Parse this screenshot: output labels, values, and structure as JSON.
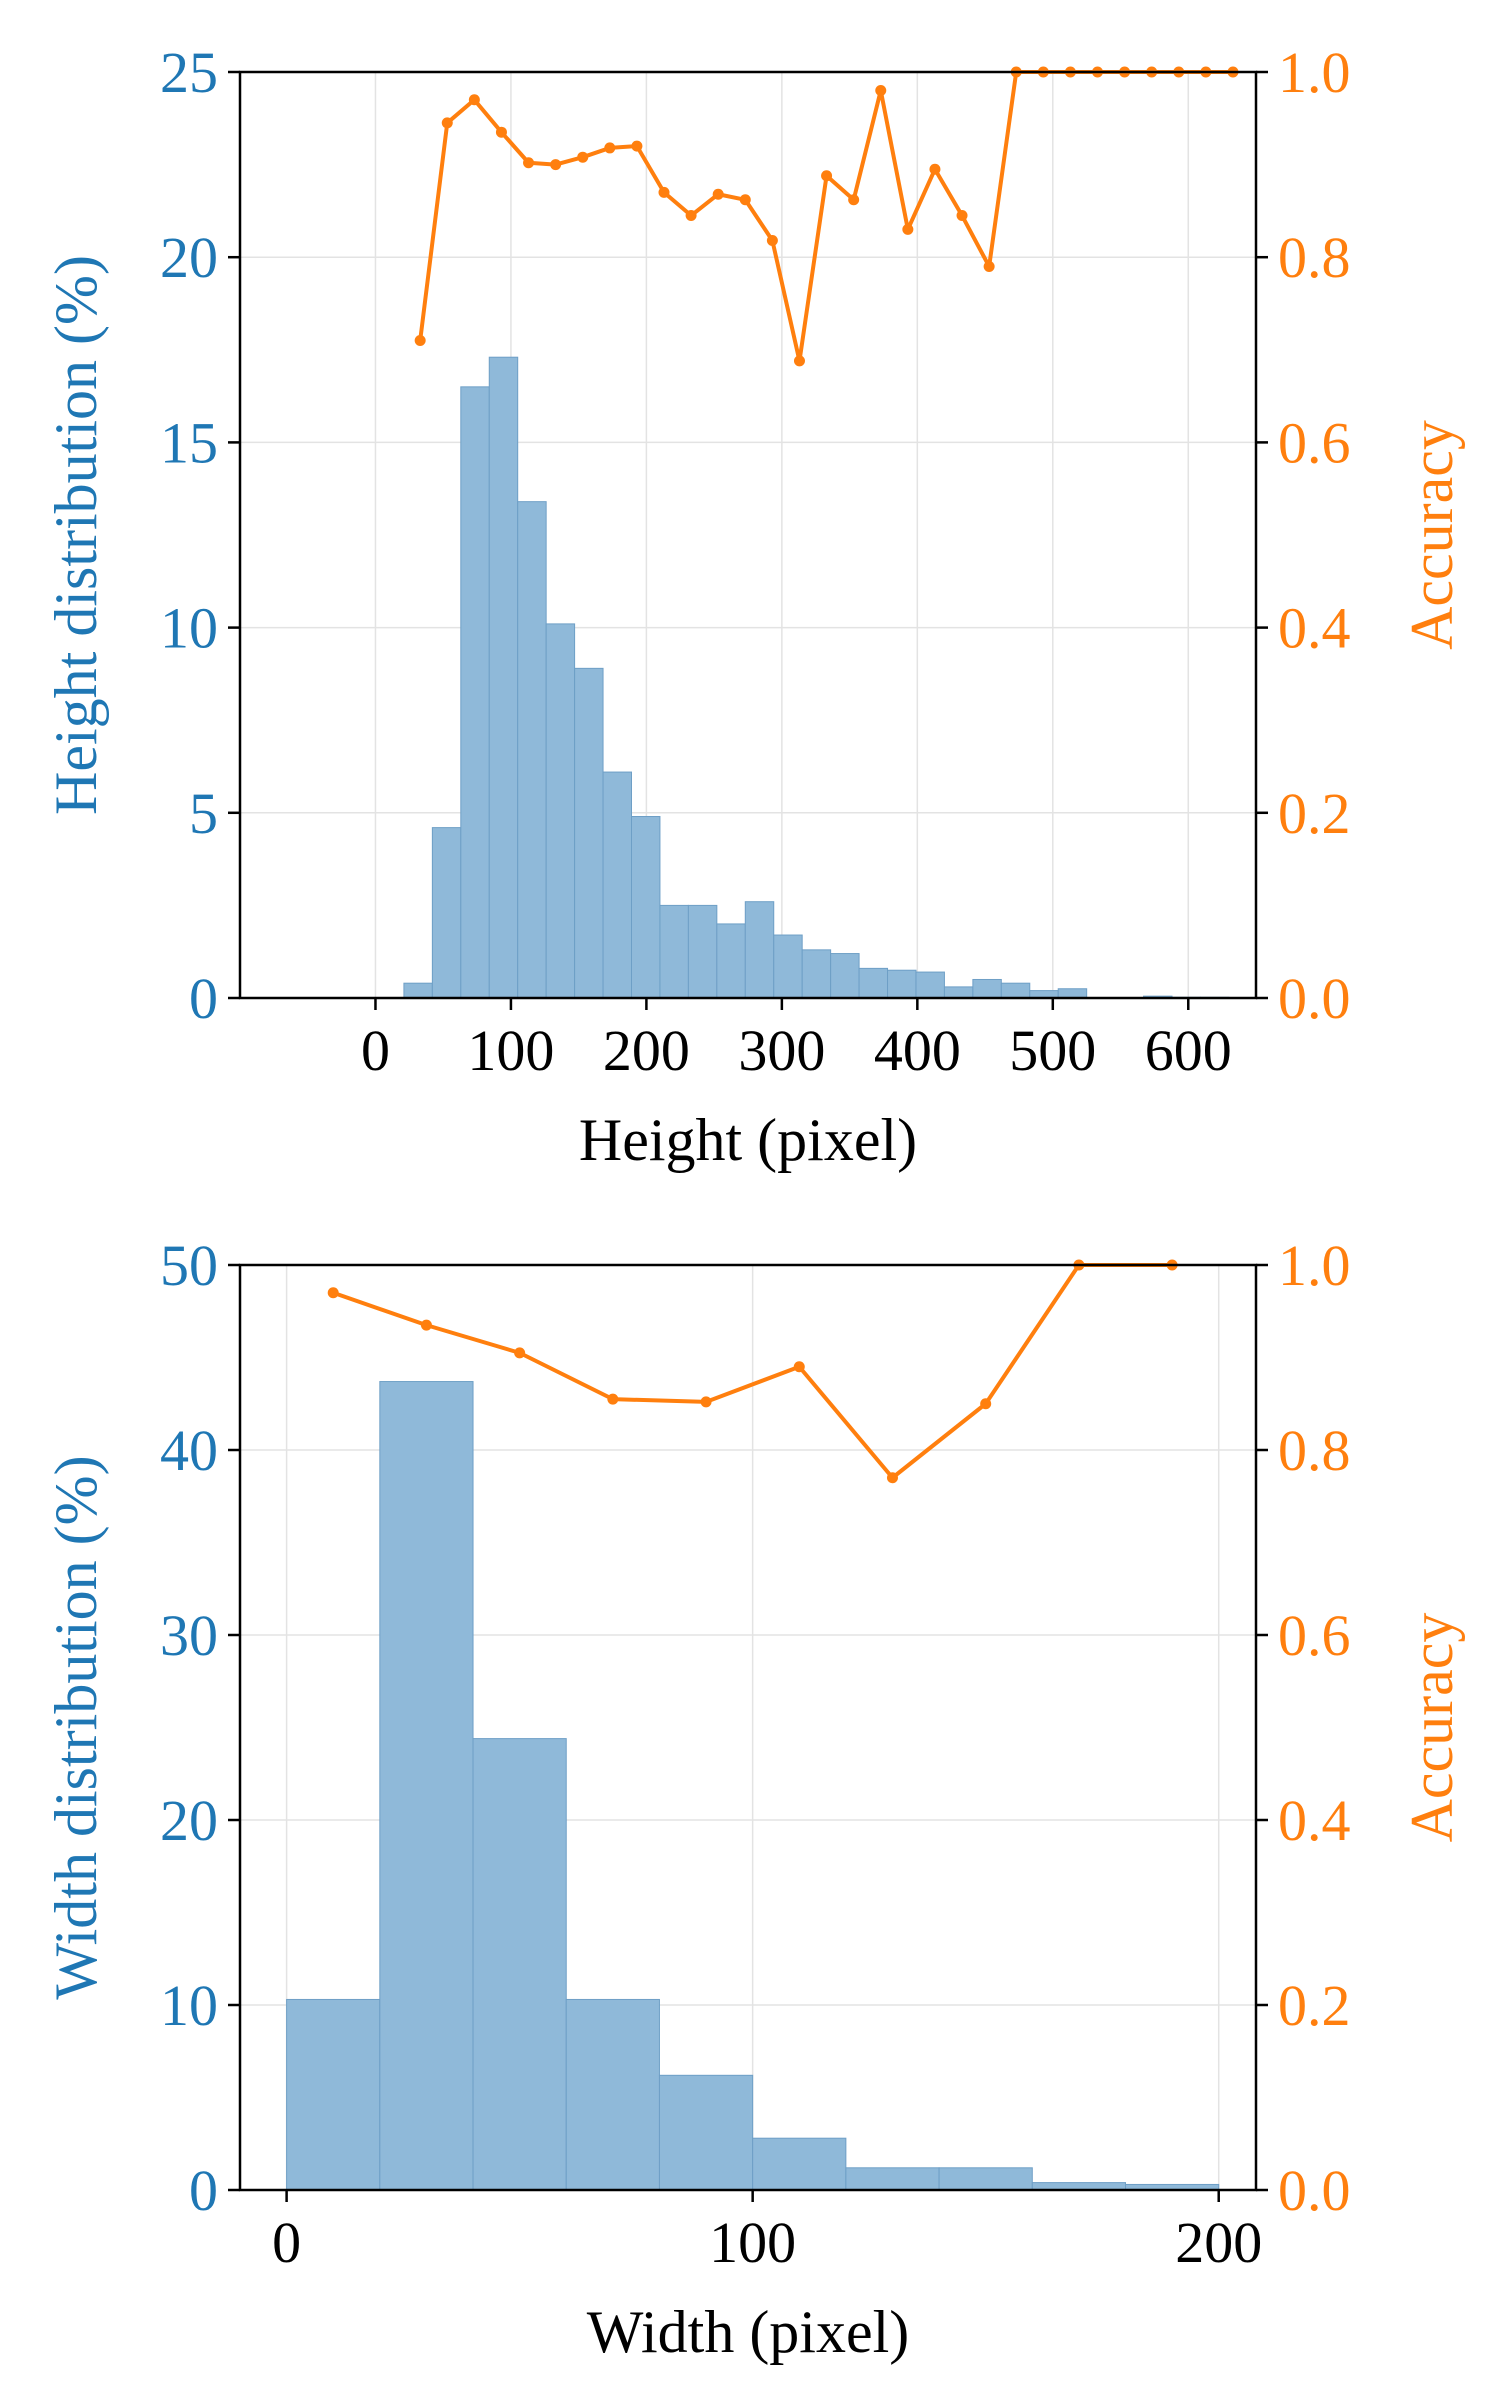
{
  "colors": {
    "hist": "#8fb9d9",
    "hist_edge": "#6e9fc6",
    "left_axis": "#1f77b4",
    "right_axis": "#ff7f0e",
    "line": "#ff7f0e",
    "grid": "#e3e3e3",
    "axis": "#000000"
  },
  "chart_data": [
    {
      "type": "bar",
      "title": "",
      "xlabel": "Height (pixel)",
      "ylabel": "Height distribution (%)",
      "y2label": "Accuracy",
      "xlim": [
        -100,
        650
      ],
      "ylim": [
        0,
        25
      ],
      "y2lim": [
        0,
        1
      ],
      "xticks": [
        0,
        100,
        200,
        300,
        400,
        500,
        600
      ],
      "yticks": [
        0,
        5,
        10,
        15,
        20,
        25
      ],
      "y2ticks": [
        "0.0",
        "0.2",
        "0.4",
        "0.6",
        "0.8",
        "1.0"
      ],
      "bin_edges": [
        -10,
        21,
        42,
        63,
        84,
        105,
        126,
        147,
        168,
        189,
        210,
        231,
        252,
        273,
        294,
        315,
        336,
        357,
        378,
        399,
        420,
        441,
        462,
        483,
        504,
        525,
        546,
        567,
        588,
        609,
        630
      ],
      "values": [
        0,
        0.4,
        4.6,
        16.5,
        17.3,
        13.4,
        10.1,
        8.9,
        6.1,
        4.9,
        2.5,
        2.5,
        2.0,
        2.6,
        1.7,
        1.3,
        1.2,
        0.8,
        0.75,
        0.7,
        0.3,
        0.5,
        0.4,
        0.2,
        0.25,
        0,
        0,
        0.05,
        0.02,
        0.02
      ],
      "accuracy_series": {
        "name": "Accuracy",
        "x": [
          33,
          53,
          73,
          93,
          113,
          133,
          153,
          173,
          193,
          213,
          233,
          253,
          273,
          293,
          313,
          333,
          353,
          373,
          393,
          413,
          433,
          453,
          473,
          493,
          513,
          533,
          553,
          573,
          593,
          613,
          633
        ],
        "y": [
          0.71,
          0.945,
          0.97,
          0.935,
          0.902,
          0.9,
          0.908,
          0.918,
          0.92,
          0.87,
          0.845,
          0.868,
          0.862,
          0.818,
          0.688,
          0.888,
          0.862,
          0.98,
          0.83,
          0.895,
          0.845,
          0.79,
          1.0,
          1.0,
          1.0,
          1.0,
          1.0,
          1.0,
          1.0,
          1.0,
          1.0
        ]
      }
    },
    {
      "type": "bar",
      "title": "",
      "xlabel": "Width (pixel)",
      "ylabel": "Width distribution (%)",
      "y2label": "Accuracy",
      "xlim": [
        -10,
        208
      ],
      "ylim": [
        0,
        50
      ],
      "y2lim": [
        0,
        1
      ],
      "xticks": [
        0,
        100,
        200
      ],
      "yticks": [
        0,
        10,
        20,
        30,
        40,
        50
      ],
      "y2ticks": [
        "0.0",
        "0.2",
        "0.4",
        "0.6",
        "0.8",
        "1.0"
      ],
      "bin_edges": [
        0,
        20,
        40,
        60,
        80,
        100,
        120,
        140,
        160,
        180,
        200
      ],
      "values": [
        10.3,
        43.7,
        24.4,
        10.3,
        6.2,
        2.8,
        1.2,
        1.2,
        0.4,
        0.3
      ],
      "accuracy_series": {
        "name": "Accuracy",
        "x": [
          10,
          30,
          50,
          70,
          90,
          110,
          130,
          150,
          170,
          190
        ],
        "y": [
          0.97,
          0.935,
          0.905,
          0.855,
          0.852,
          0.89,
          0.77,
          0.85,
          1.0,
          1.0
        ]
      }
    }
  ]
}
